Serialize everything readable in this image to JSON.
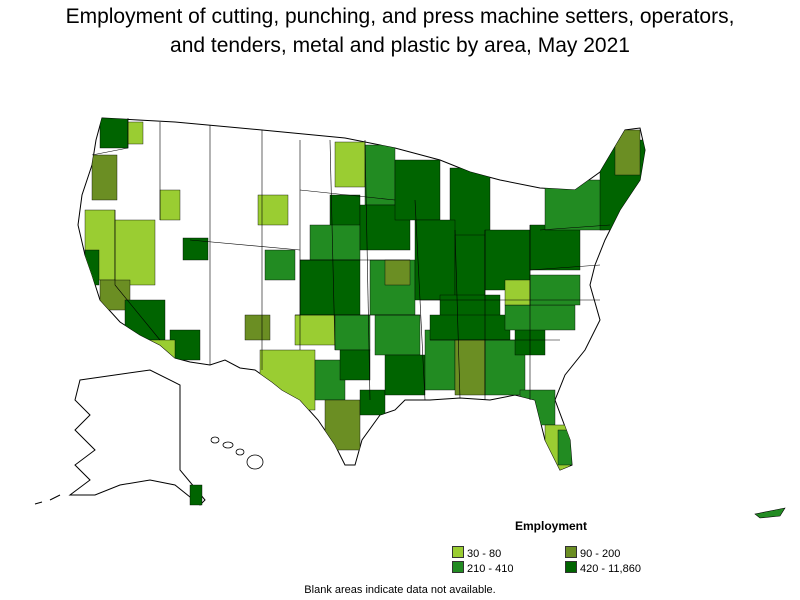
{
  "title_line1": "Employment of cutting, punching, and press machine setters, operators,",
  "title_line2": "and tenders, metal and plastic by area, May 2021",
  "legend": {
    "title": "Employment",
    "items": [
      {
        "label": "30 - 80",
        "color": "#9acd32"
      },
      {
        "label": "90 - 200",
        "color": "#6b8e23"
      },
      {
        "label": "210 - 410",
        "color": "#228b22"
      },
      {
        "label": "420 - 11,860",
        "color": "#006400"
      }
    ]
  },
  "note": "Blank areas indicate data not available.",
  "colors": {
    "border": "#000000",
    "land": "#ffffff"
  }
}
